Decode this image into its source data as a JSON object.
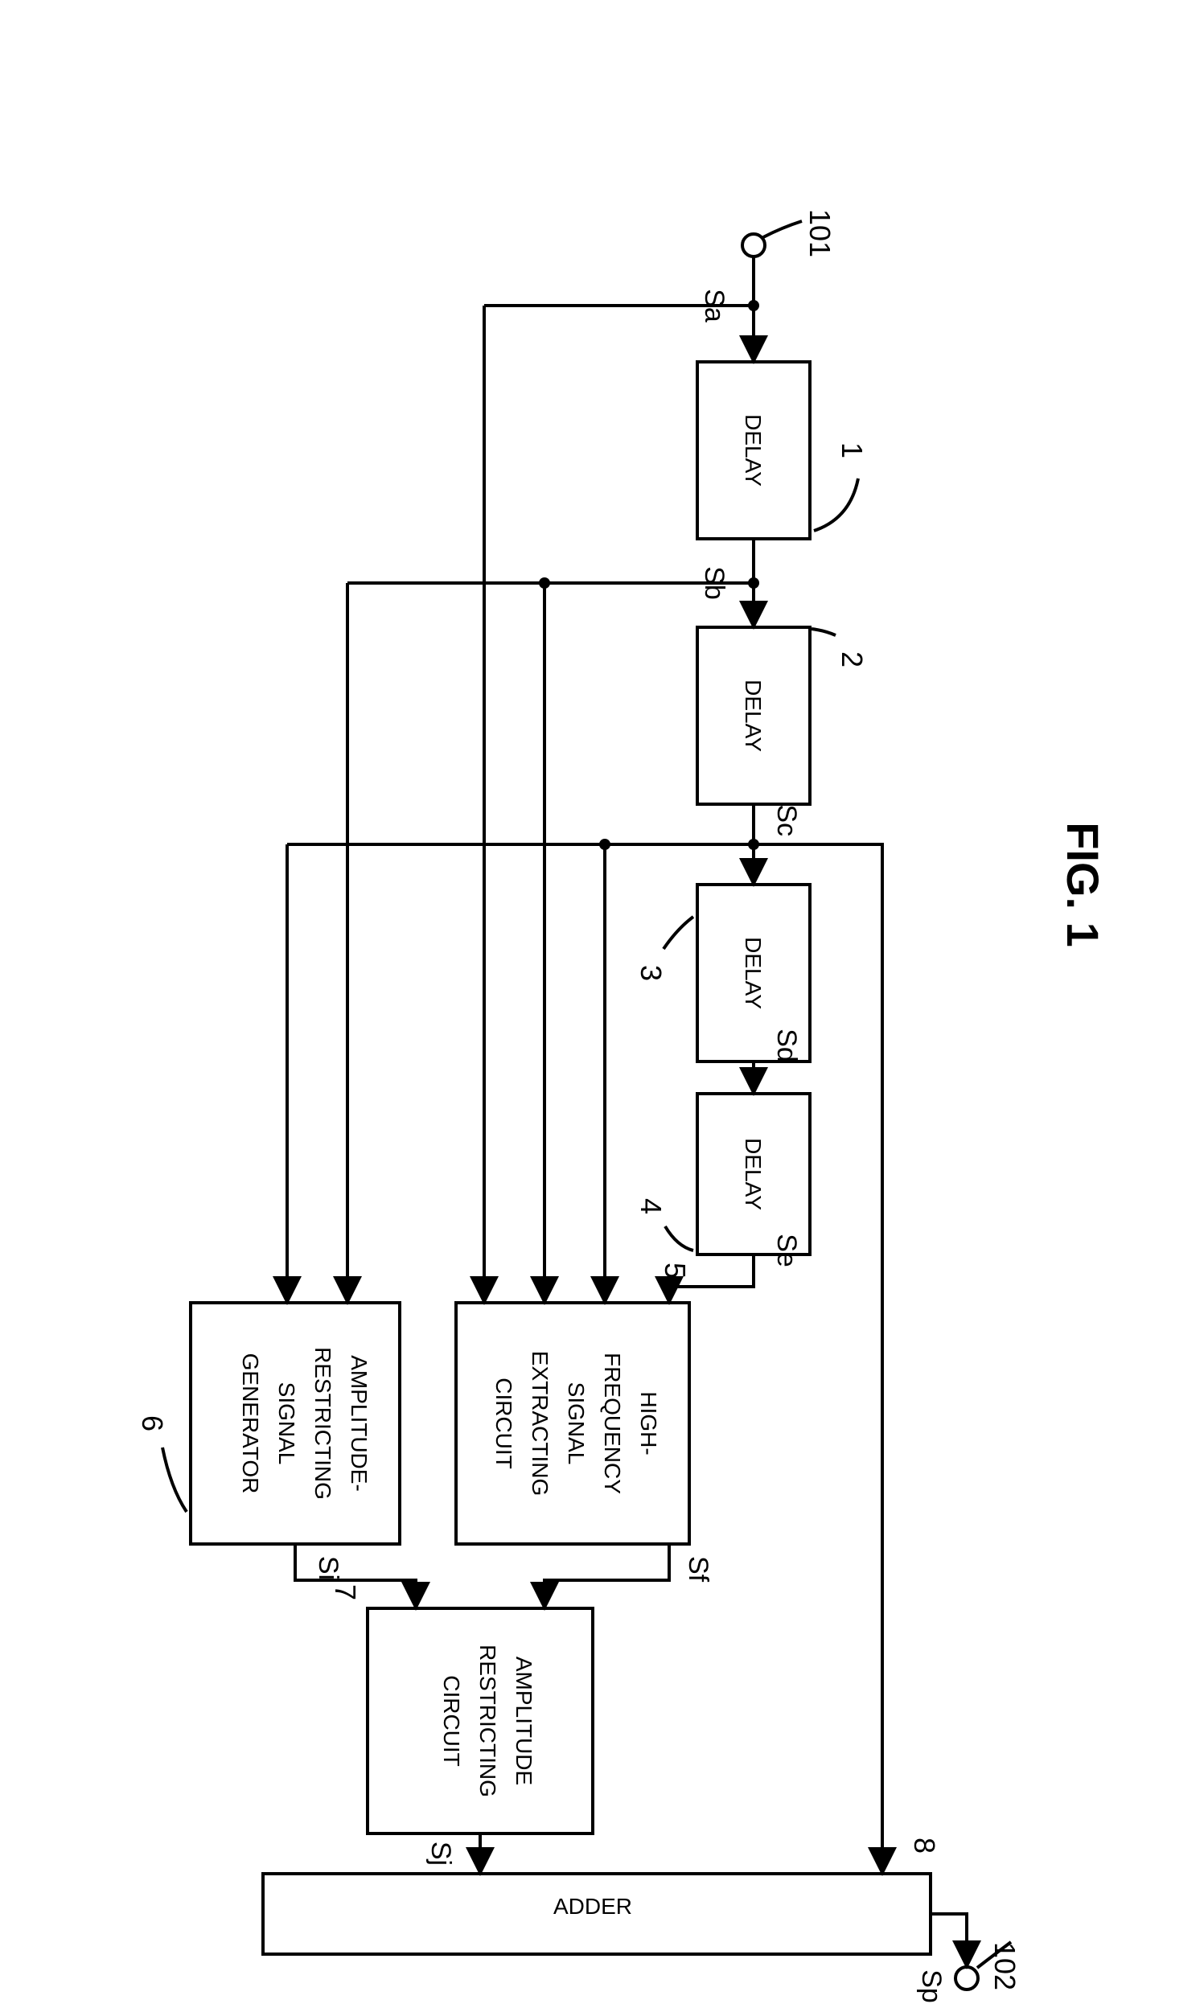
{
  "figure_title": "FIG. 1",
  "stroke_color": "#000000",
  "stroke_width": 4,
  "font_family": "Arial, Helvetica, sans-serif",
  "title_fontsize": 56,
  "block_label_fontsize": 28,
  "signal_label_fontsize": 34,
  "ref_label_fontsize": 36,
  "terminal_radius": 14,
  "node_radius": 7,
  "blocks": {
    "delay1": {
      "ref": "1",
      "label": "DELAY"
    },
    "delay2": {
      "ref": "2",
      "label": "DELAY"
    },
    "delay3": {
      "ref": "3",
      "label": "DELAY"
    },
    "delay4": {
      "ref": "4",
      "label": "DELAY"
    },
    "hf": {
      "ref": "5",
      "label1": "HIGH-",
      "label2": "FREQUENCY",
      "label3": "SIGNAL",
      "label4": "EXTRACTING",
      "label5": "CIRCUIT"
    },
    "arsg": {
      "ref": "6",
      "label1": "AMPLITUDE-",
      "label2": "RESTRICTING",
      "label3": "SIGNAL",
      "label4": "GENERATOR"
    },
    "arc": {
      "ref": "7",
      "label1": "AMPLITUDE",
      "label2": "RESTRICTING",
      "label3": "CIRCUIT"
    },
    "adder": {
      "ref": "8",
      "label": "ADDER"
    }
  },
  "signals": {
    "Sa": "Sa",
    "Sb": "Sb",
    "Sc": "Sc",
    "Sd": "Sd",
    "Se": "Se",
    "Sf": "Sf",
    "Si": "Si",
    "Sj": "Sj",
    "Sp": "Sp"
  },
  "terminals": {
    "in": {
      "ref": "101"
    },
    "out": {
      "ref": "102"
    }
  }
}
